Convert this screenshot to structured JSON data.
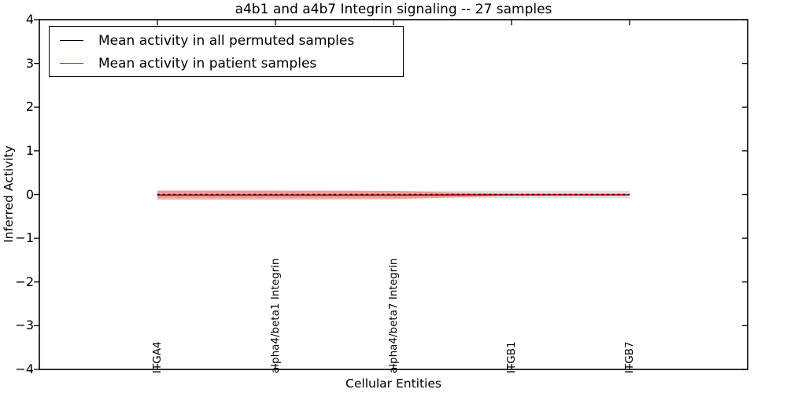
{
  "chart_data": {
    "type": "line",
    "title": "a4b1 and a4b7 Integrin signaling -- 27 samples",
    "xlabel": "Cellular Entities",
    "ylabel": "Inferred Activity",
    "categories": [
      "ITGA4",
      "alpha4/beta1 Integrin",
      "alpha4/beta7 Integrin",
      "ITGB1",
      "ITGB7"
    ],
    "x": [
      0,
      1,
      2,
      3,
      4
    ],
    "xlim": [
      -1,
      5
    ],
    "ylim": [
      -4,
      4
    ],
    "yticks": [
      4,
      3,
      2,
      1,
      0,
      -1,
      -2,
      -3,
      -4
    ],
    "ytick_labels": [
      "4",
      "3",
      "2",
      "1",
      "0",
      "−1",
      "−2",
      "−3",
      "−4"
    ],
    "grid": false,
    "legend_position": "upper-left",
    "series": [
      {
        "name": "Mean activity in all permuted samples",
        "color": "#000000",
        "line_style": "dashed",
        "values": [
          0.0,
          0.0,
          0.0,
          0.0,
          0.0
        ],
        "band_halfwidth": [
          0.085,
          0.085,
          0.085,
          0.085,
          0.085
        ],
        "band_color": "rgba(0,0,0,0.13)"
      },
      {
        "name": "Mean activity in patient samples",
        "color": "#ff0000",
        "line_style": "solid",
        "values": [
          -0.012,
          -0.012,
          -0.012,
          -0.005,
          -0.005
        ],
        "band_halfwidth": [
          0.105,
          0.105,
          0.095,
          0.02,
          0.02
        ],
        "band_color": "rgba(255,0,0,0.28)"
      }
    ]
  }
}
